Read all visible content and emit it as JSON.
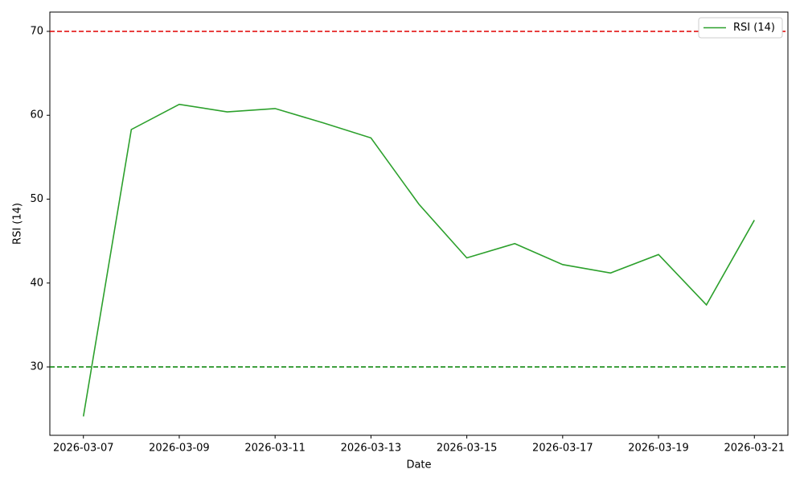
{
  "chart_data": {
    "type": "line",
    "xlabel": "Date",
    "ylabel": "RSI (14)",
    "x": [
      "2026-03-07",
      "2026-03-08",
      "2026-03-09",
      "2026-03-10",
      "2026-03-11",
      "2026-03-12",
      "2026-03-13",
      "2026-03-14",
      "2026-03-15",
      "2026-03-16",
      "2026-03-17",
      "2026-03-18",
      "2026-03-19",
      "2026-03-20",
      "2026-03-21"
    ],
    "series": [
      {
        "name": "RSI (14)",
        "color": "#2ca02c",
        "values": [
          24.1,
          58.3,
          61.3,
          60.4,
          60.8,
          59.1,
          57.3,
          49.4,
          43.0,
          44.7,
          42.2,
          41.2,
          43.4,
          37.4,
          47.5
        ]
      }
    ],
    "reference_lines": [
      {
        "value": 70,
        "color": "#e00000"
      },
      {
        "value": 30,
        "color": "#008000"
      }
    ],
    "xlim": [
      "2026-03-06T07:12",
      "2026-03-21T16:48"
    ],
    "xticks": [
      "2026-03-07",
      "2026-03-09",
      "2026-03-11",
      "2026-03-13",
      "2026-03-15",
      "2026-03-17",
      "2026-03-19",
      "2026-03-21"
    ],
    "ylim": [
      21.85,
      72.3
    ],
    "yticks": [
      30,
      40,
      50,
      60,
      70
    ],
    "grid": false,
    "legend": "upper right"
  }
}
